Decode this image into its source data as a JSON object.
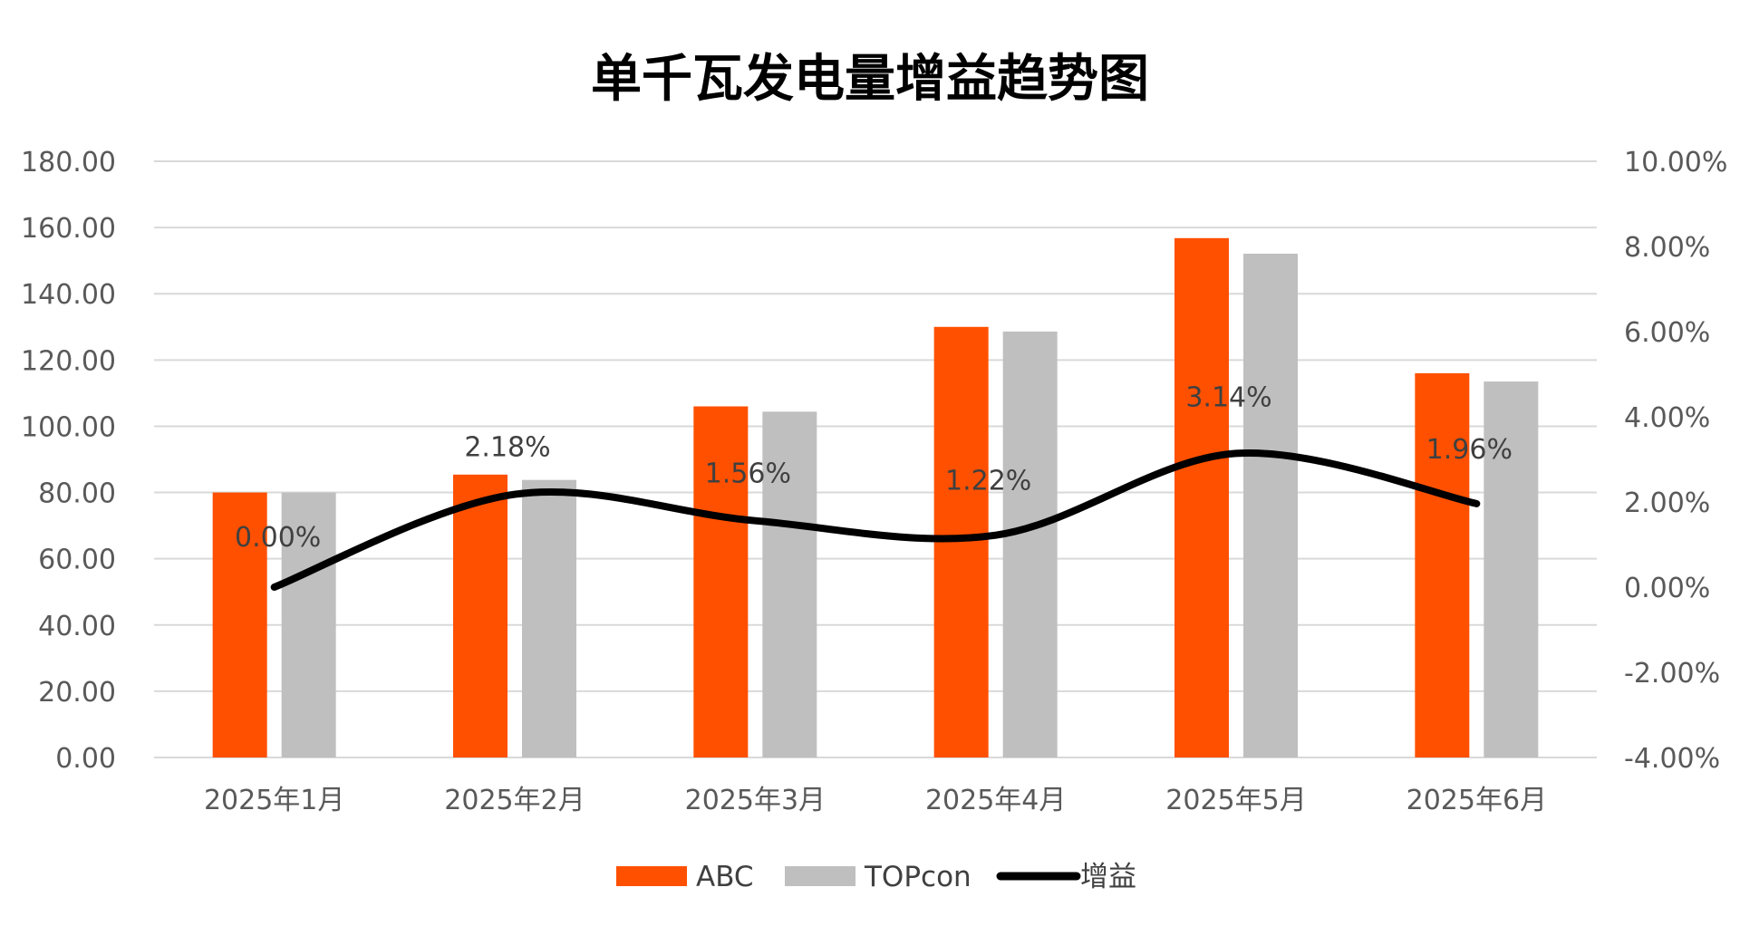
{
  "chart_data": {
    "type": "bar",
    "title": "单千瓦发电量增益趋势图",
    "categories": [
      "2025年1月",
      "2025年2月",
      "2025年3月",
      "2025年4月",
      "2025年5月",
      "2025年6月"
    ],
    "series": [
      {
        "name": "ABC",
        "type": "bar",
        "axis": "left",
        "color": "#FF5000",
        "values": [
          80.0,
          85.4,
          106.0,
          130.0,
          156.8,
          116.0
        ]
      },
      {
        "name": "TOPcon",
        "type": "bar",
        "axis": "left",
        "color": "#BFBFBF",
        "values": [
          80.0,
          83.8,
          104.4,
          128.6,
          152.1,
          113.5
        ]
      },
      {
        "name": "增益",
        "type": "line",
        "axis": "right",
        "smooth": true,
        "color": "#000000",
        "values": [
          0.0,
          2.18,
          1.56,
          1.22,
          3.14,
          1.96
        ],
        "labels": [
          "0.00%",
          "2.18%",
          "1.56%",
          "1.22%",
          "3.14%",
          "1.96%"
        ]
      }
    ],
    "y_left": {
      "min": 0,
      "max": 180,
      "ticks": [
        "0.00",
        "20.00",
        "40.00",
        "60.00",
        "80.00",
        "100.00",
        "120.00",
        "140.00",
        "160.00",
        "180.00"
      ]
    },
    "y_right": {
      "min": -4,
      "max": 10,
      "ticks": [
        "-4.00%",
        "-2.00%",
        "0.00%",
        "2.00%",
        "4.00%",
        "6.00%",
        "8.00%",
        "10.00%"
      ]
    },
    "grid": true,
    "legend_position": "bottom"
  }
}
